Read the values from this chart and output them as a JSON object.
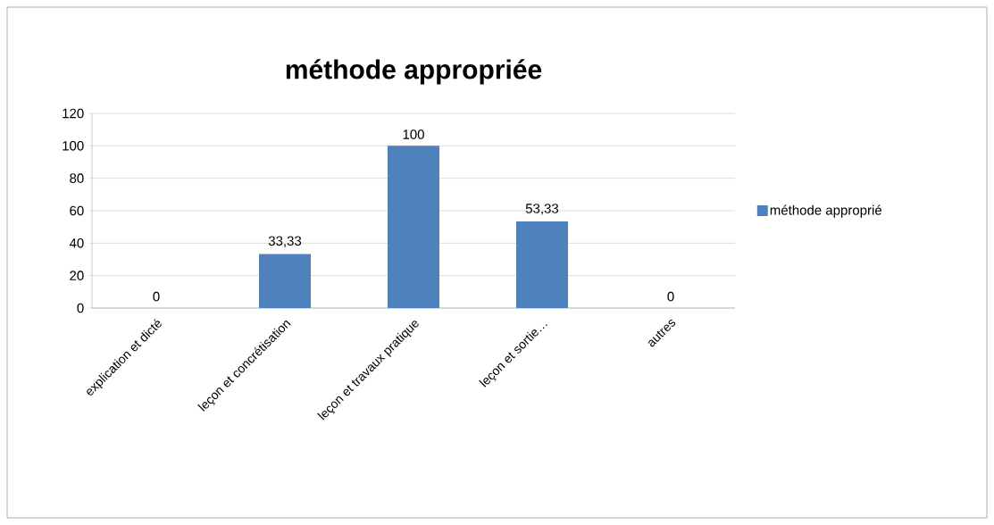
{
  "chart_data": {
    "type": "bar",
    "title": "méthode appropriée",
    "categories": [
      "explication et dicté",
      "leçon et concrétisation",
      "leçon et travaux pratique",
      "leçon et sortie…",
      "autres"
    ],
    "series": [
      {
        "name": "méthode approprié",
        "color": "#4f81bd",
        "values": [
          0,
          33.33,
          100,
          53.33,
          0
        ],
        "value_labels": [
          "0",
          "33,33",
          "100",
          "53,33",
          "0"
        ]
      }
    ],
    "ylim": [
      0,
      120
    ],
    "yticks": [
      0,
      20,
      40,
      60,
      80,
      100,
      120
    ],
    "grid": "y",
    "legend": "right"
  }
}
